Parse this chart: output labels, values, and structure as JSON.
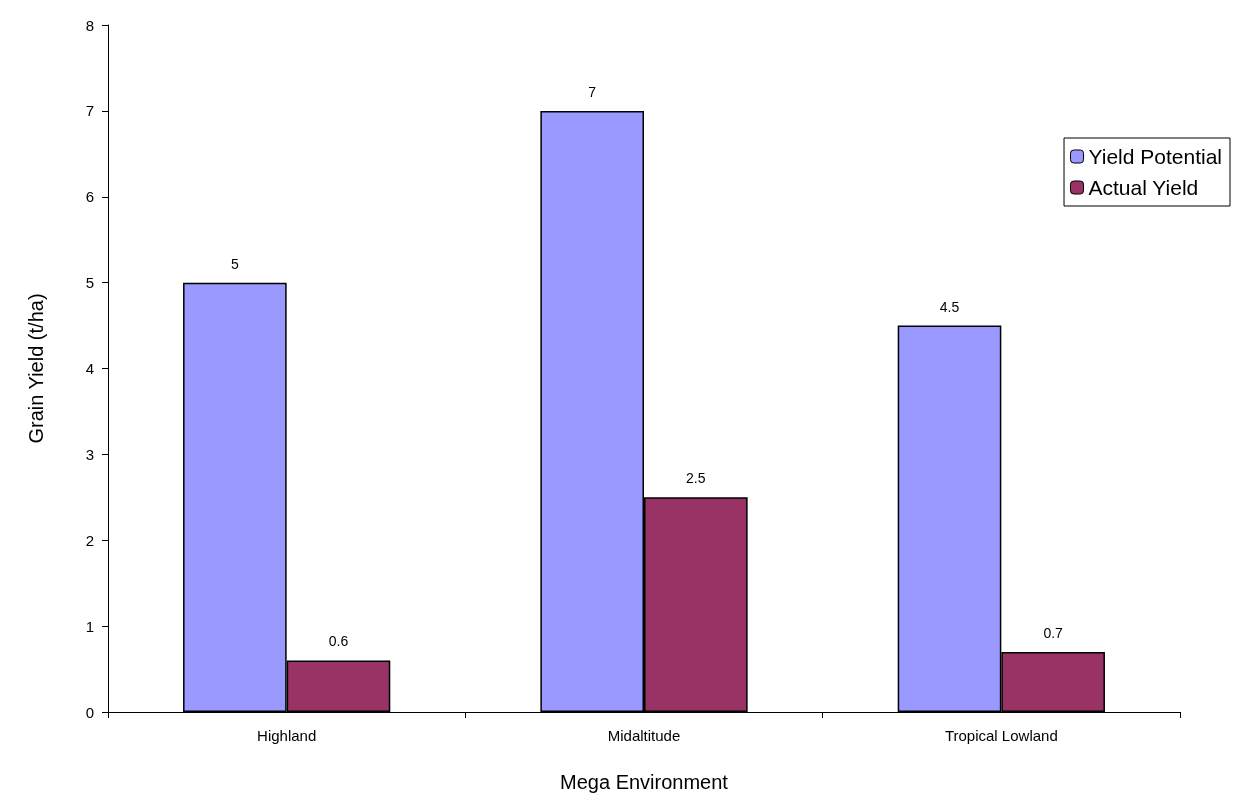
{
  "chart_data": {
    "type": "bar",
    "xlabel": "Mega Environment",
    "ylabel": "Grain Yield (t/ha)",
    "categories": [
      "Highland",
      "Midaltitude",
      "Tropical Lowland"
    ],
    "series": [
      {
        "name": "Yield Potential",
        "color": "#9999ff",
        "values": [
          5,
          7,
          4.5
        ]
      },
      {
        "name": "Actual Yield",
        "color": "#993366",
        "values": [
          0.6,
          2.5,
          0.7
        ]
      }
    ],
    "ylim": [
      0,
      8
    ],
    "yticks": [
      0,
      1,
      2,
      3,
      4,
      5,
      6,
      7,
      8
    ],
    "data_labels": true,
    "legend": "top right"
  }
}
